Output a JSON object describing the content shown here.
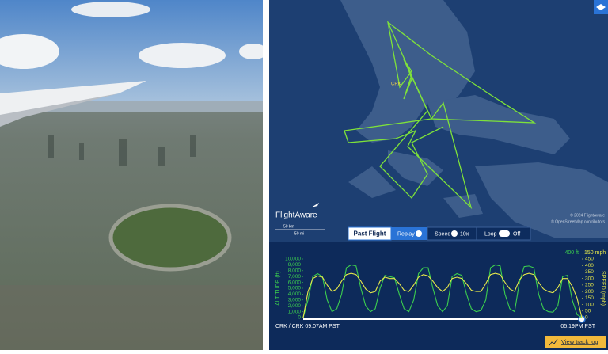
{
  "map": {
    "airport_label": "CRK",
    "brand": "FlightAware",
    "scale_km": "50 km",
    "scale_mi": "50 mi",
    "copyright": "© 2024 FlightAware",
    "osm": "© OpenStreetMap contributors"
  },
  "controls": {
    "past_flight": "Past Flight",
    "replay": "Replay",
    "speed": "Speed",
    "speed_value": "10x",
    "loop": "Loop",
    "loop_state": "Off"
  },
  "chart": {
    "type": "line",
    "altitude_label": "ALTITUDE (ft)",
    "speed_label": "SPEED (mph)",
    "current_altitude": "400 ft",
    "current_speed": "150 mph",
    "ylim": [
      0,
      10000
    ],
    "yticks": [
      0,
      {
        "value": 1000,
        "label": "1,000"
      },
      {
        "value": 2000,
        "label": "2,000"
      },
      {
        "value": 3000,
        "label": "3,000"
      },
      {
        "value": 4000,
        "label": "4,000"
      },
      {
        "value": 5000,
        "label": "5,000"
      },
      {
        "value": 6000,
        "label": "6,000"
      },
      {
        "value": 7000,
        "label": "7,000"
      },
      {
        "value": 8000,
        "label": "8,000"
      },
      {
        "value": 9000,
        "label": "9,000"
      },
      {
        "value": 10000,
        "label": "10,000"
      }
    ],
    "y2lim": [
      0,
      450
    ],
    "y2ticks": [
      0,
      50,
      100,
      150,
      200,
      250,
      300,
      350,
      400,
      450
    ],
    "series": [
      {
        "color": "#3ccf4e",
        "values": [
          0,
          3000,
          7000,
          7500,
          7000,
          3000,
          1000,
          1500,
          4000,
          8500,
          9000,
          8800,
          5000,
          2000,
          1000,
          1500,
          5000,
          7200,
          7000,
          6800,
          4000,
          1500,
          1000,
          3000,
          7500,
          8500,
          8500,
          5000,
          2000,
          1000,
          2000,
          7000,
          7500,
          7200,
          4000,
          1500,
          1000,
          1200,
          3000,
          8500,
          9000,
          8800,
          4000,
          1500,
          1000,
          6000,
          8700,
          8800,
          8500,
          4000,
          1500,
          1000,
          900,
          2000,
          7000,
          7200,
          3000,
          500,
          0
        ]
      },
      {
        "color": "#e6e84a",
        "axis": "y2",
        "values": [
          0,
          200,
          300,
          320,
          310,
          250,
          200,
          220,
          280,
          330,
          340,
          330,
          280,
          220,
          190,
          200,
          280,
          310,
          300,
          300,
          260,
          210,
          200,
          250,
          310,
          330,
          320,
          280,
          230,
          200,
          230,
          300,
          310,
          300,
          260,
          210,
          200,
          200,
          260,
          330,
          340,
          330,
          270,
          220,
          200,
          290,
          330,
          340,
          330,
          270,
          220,
          200,
          190,
          230,
          300,
          300,
          240,
          150,
          0
        ]
      }
    ],
    "start_label": "CRK / CRK 09:07AM PST",
    "end_label": "05:19PM PST",
    "track_log": "View track log"
  }
}
